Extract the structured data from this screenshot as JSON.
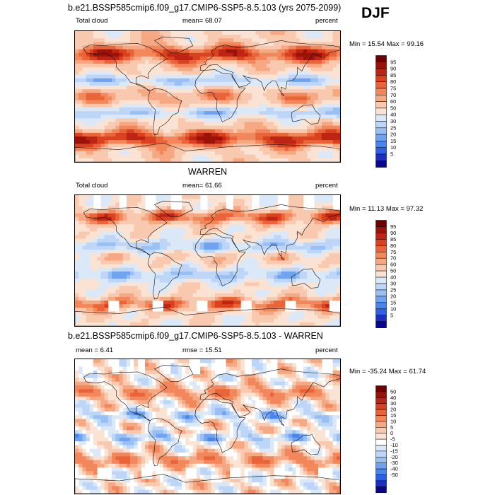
{
  "season": "DJF",
  "palette_full": [
    "#08068a",
    "#1d2ec3",
    "#2f5fe4",
    "#4a84ee",
    "#6fa3f2",
    "#98c0f4",
    "#bdd6f7",
    "#dbe8f8",
    "#fbe3d4",
    "#f8c9ae",
    "#f6a883",
    "#f2875c",
    "#ea6439",
    "#d9411f",
    "#bd2413",
    "#9a1208",
    "#6e0000"
  ],
  "palette_diff": [
    "#08068a",
    "#1d2ec3",
    "#2f5fe4",
    "#4a84ee",
    "#6fa3f2",
    "#98c0f4",
    "#bdd6f7",
    "#dbe8f8",
    "#ffffff",
    "#fbe3d4",
    "#f8c9ae",
    "#f6a883",
    "#f2875c",
    "#ea6439",
    "#d9411f",
    "#bd2413",
    "#9a1208",
    "#6e0000"
  ],
  "panels": [
    {
      "title": "b.e21.BSSP585cmip6.f09_g17.CMIP6-SSP5-8.5.103 (yrs 2075-2099)",
      "left_label": "Total cloud",
      "center_label": "mean=  68.07",
      "right_label": "percent",
      "minmax": "Min =  15.54 Max =  99.16",
      "colorbar_levels": [
        "95",
        "90",
        "85",
        "80",
        "75",
        "70",
        "60",
        "50",
        "40",
        "30",
        "25",
        "20",
        "15",
        "10",
        "5"
      ]
    },
    {
      "title": "WARREN",
      "left_label": "Total cloud",
      "center_label": "mean=  61.66",
      "right_label": "percent",
      "minmax": "Min =  11.13 Max =  97.32",
      "colorbar_levels": [
        "95",
        "90",
        "85",
        "80",
        "75",
        "70",
        "60",
        "50",
        "40",
        "30",
        "25",
        "20",
        "15",
        "10",
        "5"
      ]
    },
    {
      "title": "b.e21.BSSP585cmip6.f09_g17.CMIP6-SSP5-8.5.103 - WARREN",
      "left_label": "mean =  6.41",
      "center_label": "rmse =  15.51",
      "right_label": "percent",
      "minmax": "Min = -35.24 Max =  61.74",
      "colorbar_levels": [
        "50",
        "40",
        "30",
        "20",
        "15",
        "10",
        "5",
        "0",
        "-5",
        "-10",
        "-15",
        "-20",
        "-30",
        "-40",
        "-50"
      ]
    }
  ]
}
